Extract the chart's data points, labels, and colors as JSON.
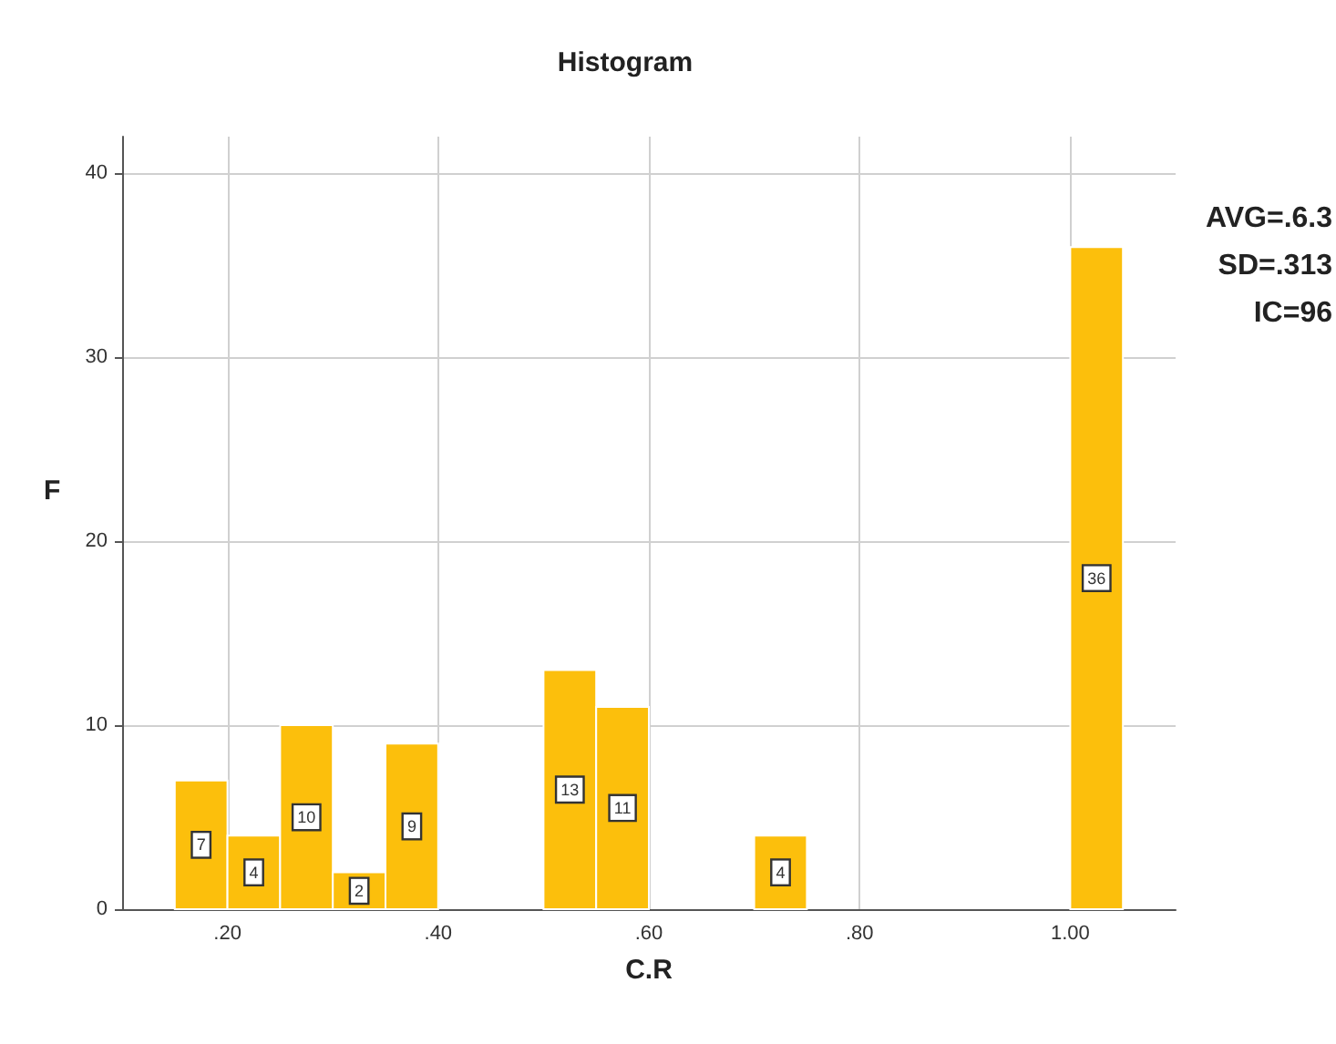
{
  "chart_data": {
    "type": "histogram",
    "title": "Histogram",
    "xlabel": "C.R",
    "ylabel": "F",
    "bins": [
      0.15,
      0.2,
      0.25,
      0.3,
      0.35,
      0.4,
      0.45,
      0.5,
      0.55,
      0.6,
      0.65,
      0.7,
      0.75,
      0.8,
      0.85,
      0.9,
      0.95,
      1.0,
      1.05
    ],
    "values": [
      7,
      4,
      10,
      2,
      9,
      0,
      0,
      13,
      11,
      0,
      0,
      4,
      0,
      0,
      0,
      0,
      0,
      36
    ],
    "value_labels": [
      "7",
      "4",
      "10",
      "2",
      "9",
      null,
      null,
      "13",
      "11",
      null,
      null,
      "4",
      null,
      null,
      null,
      null,
      null,
      "36"
    ],
    "color": "#fcbf0c",
    "grid": true,
    "xlim": [
      0.1,
      1.1
    ],
    "xticks": [
      {
        "value": 0.2,
        "label": ".20"
      },
      {
        "value": 0.4,
        "label": ".40"
      },
      {
        "value": 0.6,
        "label": ".60"
      },
      {
        "value": 0.8,
        "label": ".80"
      },
      {
        "value": 1.0,
        "label": "1.00"
      }
    ],
    "ylim": [
      0,
      42
    ],
    "yticks": [
      0,
      10,
      20,
      30,
      40
    ],
    "annotations": [
      "AVG=.6.3",
      "SD=.313",
      "IC=96"
    ]
  }
}
